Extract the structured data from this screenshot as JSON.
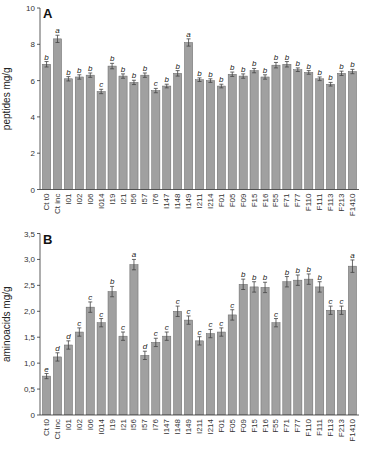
{
  "chart_data": [
    {
      "type": "bar",
      "title": "A",
      "categories": [
        "Ct t0",
        "Ct inc",
        "I01",
        "I02",
        "I06",
        "I014",
        "I19",
        "I21",
        "I56",
        "I57",
        "I76",
        "I147",
        "I148",
        "I149",
        "I211",
        "I214",
        "F01",
        "F05",
        "F09",
        "F15",
        "F16",
        "F55",
        "F71",
        "F77",
        "F110",
        "F111",
        "F113",
        "F213",
        "F1410"
      ],
      "values": [
        6.9,
        8.3,
        6.1,
        6.2,
        6.3,
        5.4,
        6.8,
        6.25,
        5.9,
        6.3,
        5.45,
        5.7,
        6.4,
        8.1,
        6.05,
        6.0,
        5.7,
        6.35,
        6.25,
        6.55,
        6.2,
        6.85,
        6.9,
        6.6,
        6.45,
        6.1,
        5.8,
        6.4,
        6.5
      ],
      "errors": [
        0.15,
        0.2,
        0.12,
        0.12,
        0.12,
        0.12,
        0.15,
        0.12,
        0.12,
        0.12,
        0.12,
        0.1,
        0.15,
        0.2,
        0.1,
        0.1,
        0.1,
        0.12,
        0.12,
        0.12,
        0.12,
        0.15,
        0.15,
        0.1,
        0.1,
        0.1,
        0.1,
        0.12,
        0.12
      ],
      "letters": [
        "b",
        "a",
        "b",
        "b",
        "b",
        "c",
        "b",
        "b",
        "b",
        "b",
        "c",
        "b",
        "b",
        "a",
        "b",
        "b",
        "b",
        "b",
        "b",
        "b",
        "b",
        "b",
        "b",
        "b",
        "b",
        "b",
        "b",
        "b",
        "b"
      ],
      "ylabel": "peptides mg/g",
      "ylim": [
        0,
        10
      ],
      "yticks": [
        0,
        2,
        4,
        6,
        8,
        10
      ],
      "color": "#a0a0a0",
      "grid": false
    },
    {
      "type": "bar",
      "title": "B",
      "categories": [
        "Ct t0",
        "Ct inc",
        "I01",
        "I02",
        "I06",
        "I014",
        "I19",
        "I21",
        "I56",
        "I57",
        "I76",
        "I147",
        "I148",
        "I149",
        "I211",
        "I214",
        "F01",
        "F05",
        "F09",
        "F15",
        "F16",
        "F55",
        "F71",
        "F77",
        "F110",
        "F111",
        "F113",
        "F213",
        "F1410"
      ],
      "values": [
        0.75,
        1.12,
        1.35,
        1.6,
        2.08,
        1.78,
        2.38,
        1.52,
        2.9,
        1.15,
        1.4,
        1.52,
        2.0,
        1.83,
        1.43,
        1.57,
        1.6,
        1.93,
        2.52,
        2.47,
        2.46,
        1.78,
        2.57,
        2.6,
        2.62,
        2.47,
        2.02,
        2.02,
        2.87
      ],
      "errors": [
        0.05,
        0.08,
        0.08,
        0.08,
        0.1,
        0.08,
        0.1,
        0.08,
        0.1,
        0.08,
        0.08,
        0.08,
        0.1,
        0.08,
        0.08,
        0.08,
        0.08,
        0.1,
        0.1,
        0.1,
        0.1,
        0.08,
        0.1,
        0.1,
        0.1,
        0.1,
        0.08,
        0.08,
        0.12
      ],
      "letters": [
        "e",
        "d",
        "d",
        "c",
        "c",
        "c",
        "b",
        "c",
        "a",
        "d",
        "c",
        "c",
        "c",
        "c",
        "c",
        "c",
        "c",
        "c",
        "b",
        "b",
        "b",
        "c",
        "b",
        "b",
        "b",
        "b",
        "c",
        "c",
        "a"
      ],
      "ylabel": "aminoacids mg/g",
      "ylim": [
        0,
        3.5
      ],
      "yticks": [
        0,
        {
          "value": 0.5,
          "label": "0,5"
        },
        {
          "value": 1.0,
          "label": "1,0"
        },
        {
          "value": 1.5,
          "label": "1,5"
        },
        {
          "value": 2.0,
          "label": "2,0"
        },
        {
          "value": 2.5,
          "label": "2,5"
        },
        {
          "value": 3.0,
          "label": "3,0"
        },
        {
          "value": 3.5,
          "label": "3,5"
        }
      ],
      "color": "#a0a0a0",
      "grid": false
    }
  ]
}
